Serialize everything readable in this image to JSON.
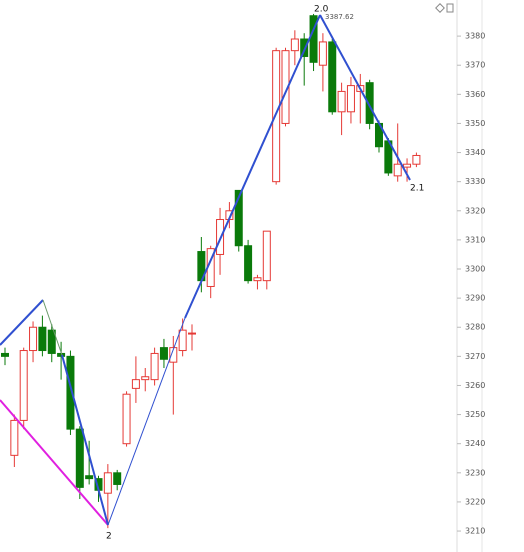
{
  "chart_data": {
    "type": "candlestick",
    "categories": [
      null,
      null,
      null,
      null,
      null,
      null,
      null,
      null,
      null,
      null,
      null,
      null,
      null,
      null,
      null,
      null,
      null,
      null,
      null,
      null,
      null,
      null,
      null,
      null,
      null,
      null,
      null,
      null,
      null,
      null,
      null,
      null,
      null,
      null,
      null,
      null,
      null,
      null,
      null,
      null,
      null,
      null,
      null,
      null,
      null
    ],
    "open": [
      3271,
      3236,
      3248,
      3272,
      3280,
      3279,
      3271,
      3270,
      3245,
      3229,
      3228,
      3223,
      3230,
      3240,
      3259,
      3262,
      3262,
      3273,
      3268,
      3272,
      3278,
      3306,
      3294,
      3305,
      3317,
      3327,
      3308,
      3296,
      3296,
      3330,
      3350,
      3375,
      3379,
      3387,
      3370,
      3378,
      3354,
      3354,
      3361,
      3364,
      3350,
      3344,
      3332,
      3335,
      3336
    ],
    "high": [
      3273,
      3250,
      3273,
      3282,
      3284,
      3281,
      3275,
      3272,
      3246,
      3241,
      3229,
      3233,
      3231,
      3258,
      3270,
      3266,
      3273,
      3276,
      3277,
      3283,
      3281,
      3311,
      3308,
      3321,
      3323,
      3327,
      3310,
      3298,
      3313,
      3376,
      3376,
      3382,
      3381,
      3387.62,
      3381,
      3379,
      3364,
      3366,
      3367,
      3365,
      3351,
      3345,
      3350,
      3338,
      3340
    ],
    "low": [
      3267,
      3232,
      3245,
      3268,
      3270,
      3268,
      3262,
      3243,
      3221,
      3226,
      3220,
      3211,
      3224,
      3239,
      3254,
      3258,
      3260,
      3266,
      3250,
      3270,
      3272,
      3292,
      3290,
      3298,
      3314,
      3306,
      3295,
      3293,
      3293,
      3329,
      3349,
      3370,
      3363,
      3368,
      3361,
      3353,
      3346,
      3350,
      3350,
      3348,
      3340,
      3332,
      3330,
      3330,
      3335
    ],
    "close": [
      3270,
      3248,
      3272,
      3280,
      3272,
      3271,
      3270,
      3245,
      3225,
      3228,
      3224,
      3230,
      3226,
      3257,
      3262,
      3263,
      3271,
      3269,
      3273,
      3279,
      3278,
      3296,
      3307,
      3317,
      3320,
      3308,
      3296,
      3297,
      3313,
      3375,
      3375,
      3379,
      3373,
      3371,
      3378,
      3354,
      3361,
      3363,
      3363,
      3350,
      3342,
      3333,
      3336,
      3336,
      3339
    ],
    "up_color": "#e53935",
    "down_color": "#0a7a0a",
    "ylim": [
      3202.8,
      3392.4
    ],
    "yticks": [
      3210,
      3220,
      3230,
      3240,
      3250,
      3260,
      3270,
      3280,
      3290,
      3300,
      3310,
      3320,
      3330,
      3340,
      3350,
      3360,
      3370,
      3380
    ],
    "annotations": [
      "2.0",
      "3387.62",
      "2",
      "2.1"
    ]
  }
}
